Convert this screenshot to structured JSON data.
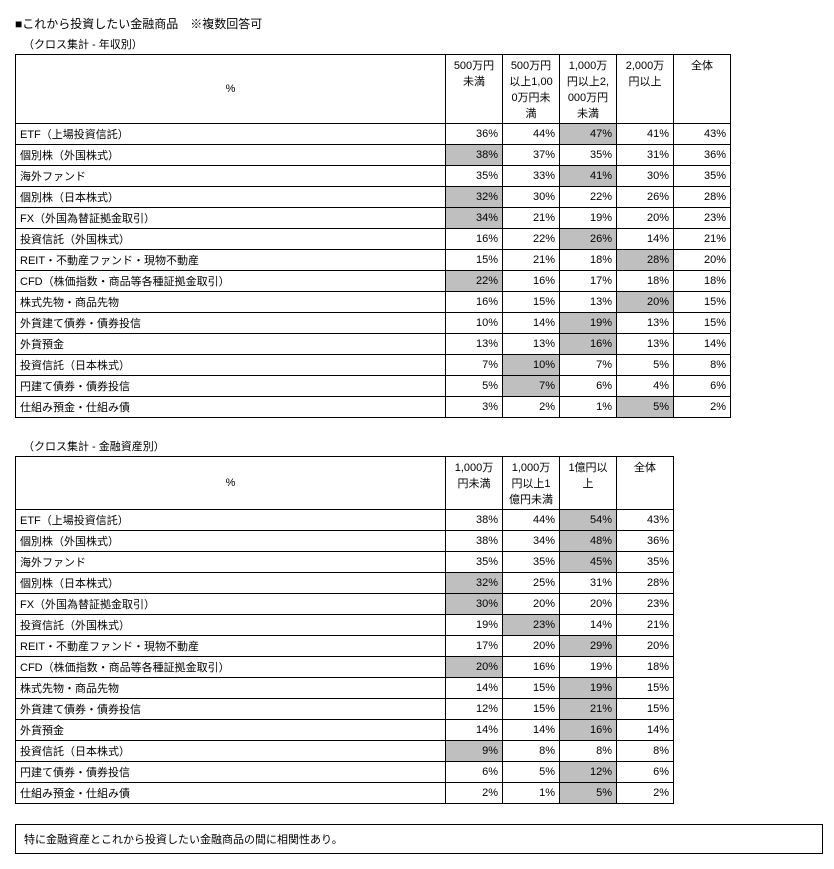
{
  "title": "■これから投資したい金融商品　※複数回答可",
  "table1": {
    "subtitle": "（クロス集計 - 年収別）",
    "percent_label": "%",
    "headers": [
      "500万円未満",
      "500万円以上1,000万円未満",
      "1,000万円以上2,000万円未満",
      "2,000万円以上",
      "全体"
    ],
    "rows": [
      {
        "label": "ETF（上場投資信託）",
        "v": [
          "36%",
          "44%",
          "47%",
          "41%",
          "43%"
        ],
        "hl": [
          0,
          0,
          1,
          0,
          0
        ]
      },
      {
        "label": "個別株（外国株式）",
        "v": [
          "38%",
          "37%",
          "35%",
          "31%",
          "36%"
        ],
        "hl": [
          1,
          0,
          0,
          0,
          0
        ]
      },
      {
        "label": "海外ファンド",
        "v": [
          "35%",
          "33%",
          "41%",
          "30%",
          "35%"
        ],
        "hl": [
          0,
          0,
          1,
          0,
          0
        ]
      },
      {
        "label": "個別株（日本株式）",
        "v": [
          "32%",
          "30%",
          "22%",
          "26%",
          "28%"
        ],
        "hl": [
          1,
          0,
          0,
          0,
          0
        ]
      },
      {
        "label": "FX（外国為替証拠金取引）",
        "v": [
          "34%",
          "21%",
          "19%",
          "20%",
          "23%"
        ],
        "hl": [
          1,
          0,
          0,
          0,
          0
        ]
      },
      {
        "label": "投資信託（外国株式）",
        "v": [
          "16%",
          "22%",
          "26%",
          "14%",
          "21%"
        ],
        "hl": [
          0,
          0,
          1,
          0,
          0
        ]
      },
      {
        "label": "REIT・不動産ファンド・現物不動産",
        "v": [
          "15%",
          "21%",
          "18%",
          "28%",
          "20%"
        ],
        "hl": [
          0,
          0,
          0,
          1,
          0
        ]
      },
      {
        "label": "CFD（株価指数・商品等各種証拠金取引）",
        "v": [
          "22%",
          "16%",
          "17%",
          "18%",
          "18%"
        ],
        "hl": [
          1,
          0,
          0,
          0,
          0
        ]
      },
      {
        "label": "株式先物・商品先物",
        "v": [
          "16%",
          "15%",
          "13%",
          "20%",
          "15%"
        ],
        "hl": [
          0,
          0,
          0,
          1,
          0
        ]
      },
      {
        "label": "外貨建て債券・債券投信",
        "v": [
          "10%",
          "14%",
          "19%",
          "13%",
          "15%"
        ],
        "hl": [
          0,
          0,
          1,
          0,
          0
        ]
      },
      {
        "label": "外貨預金",
        "v": [
          "13%",
          "13%",
          "16%",
          "13%",
          "14%"
        ],
        "hl": [
          0,
          0,
          1,
          0,
          0
        ]
      },
      {
        "label": "投資信託（日本株式）",
        "v": [
          "7%",
          "10%",
          "7%",
          "5%",
          "8%"
        ],
        "hl": [
          0,
          1,
          0,
          0,
          0
        ]
      },
      {
        "label": "円建て債券・債券投信",
        "v": [
          "5%",
          "7%",
          "6%",
          "4%",
          "6%"
        ],
        "hl": [
          0,
          1,
          0,
          0,
          0
        ]
      },
      {
        "label": "仕組み預金・仕組み債",
        "v": [
          "3%",
          "2%",
          "1%",
          "5%",
          "2%"
        ],
        "hl": [
          0,
          0,
          0,
          1,
          0
        ]
      }
    ]
  },
  "table2": {
    "subtitle": "（クロス集計 - 金融資産別）",
    "percent_label": "%",
    "headers": [
      "1,000万円未満",
      "1,000万円以上1億円未満",
      "1億円以上",
      "全体"
    ],
    "rows": [
      {
        "label": "ETF（上場投資信託）",
        "v": [
          "38%",
          "44%",
          "54%",
          "43%"
        ],
        "hl": [
          0,
          0,
          1,
          0
        ]
      },
      {
        "label": "個別株（外国株式）",
        "v": [
          "38%",
          "34%",
          "48%",
          "36%"
        ],
        "hl": [
          0,
          0,
          1,
          0
        ]
      },
      {
        "label": "海外ファンド",
        "v": [
          "35%",
          "35%",
          "45%",
          "35%"
        ],
        "hl": [
          0,
          0,
          1,
          0
        ]
      },
      {
        "label": "個別株（日本株式）",
        "v": [
          "32%",
          "25%",
          "31%",
          "28%"
        ],
        "hl": [
          1,
          0,
          0,
          0
        ]
      },
      {
        "label": "FX（外国為替証拠金取引）",
        "v": [
          "30%",
          "20%",
          "20%",
          "23%"
        ],
        "hl": [
          1,
          0,
          0,
          0
        ]
      },
      {
        "label": "投資信託（外国株式）",
        "v": [
          "19%",
          "23%",
          "14%",
          "21%"
        ],
        "hl": [
          0,
          1,
          0,
          0
        ]
      },
      {
        "label": "REIT・不動産ファンド・現物不動産",
        "v": [
          "17%",
          "20%",
          "29%",
          "20%"
        ],
        "hl": [
          0,
          0,
          1,
          0
        ]
      },
      {
        "label": "CFD（株価指数・商品等各種証拠金取引）",
        "v": [
          "20%",
          "16%",
          "19%",
          "18%"
        ],
        "hl": [
          1,
          0,
          0,
          0
        ]
      },
      {
        "label": "株式先物・商品先物",
        "v": [
          "14%",
          "15%",
          "19%",
          "15%"
        ],
        "hl": [
          0,
          0,
          1,
          0
        ]
      },
      {
        "label": "外貨建て債券・債券投信",
        "v": [
          "12%",
          "15%",
          "21%",
          "15%"
        ],
        "hl": [
          0,
          0,
          1,
          0
        ]
      },
      {
        "label": "外貨預金",
        "v": [
          "14%",
          "14%",
          "16%",
          "14%"
        ],
        "hl": [
          0,
          0,
          1,
          0
        ]
      },
      {
        "label": "投資信託（日本株式）",
        "v": [
          "9%",
          "8%",
          "8%",
          "8%"
        ],
        "hl": [
          1,
          0,
          0,
          0
        ]
      },
      {
        "label": "円建て債券・債券投信",
        "v": [
          "6%",
          "5%",
          "12%",
          "6%"
        ],
        "hl": [
          0,
          0,
          1,
          0
        ]
      },
      {
        "label": "仕組み預金・仕組み債",
        "v": [
          "2%",
          "1%",
          "5%",
          "2%"
        ],
        "hl": [
          0,
          0,
          1,
          0
        ]
      }
    ]
  },
  "note": "特に金融資産とこれから投資したい金融商品の間に相関性あり。"
}
